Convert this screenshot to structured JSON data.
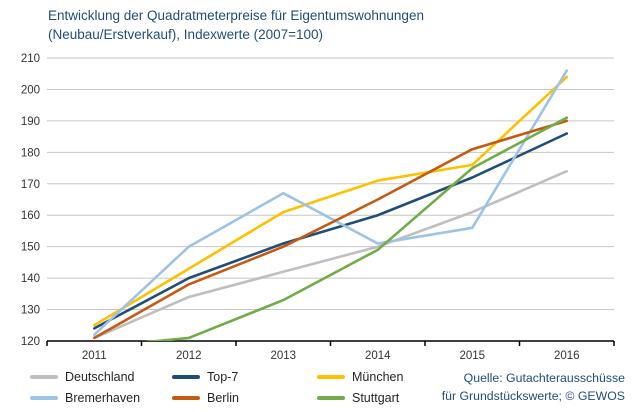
{
  "title": {
    "line1": "Entwicklung der Quadratmeterpreise für Eigentumswohnungen",
    "line2": "(Neubau/Erstverkauf), Indexwerte (2007=100)"
  },
  "source": {
    "line1": "Quelle: Gutachterausschüsse",
    "line2": "für Grundstückswerte; © GEWOS"
  },
  "colors": {
    "title_text": "#1F4E79",
    "axis_text": "#333333",
    "gridline": "#C6C6C6",
    "axis_line": "#000000",
    "background": "#FFFFFF"
  },
  "chart_data": {
    "type": "line",
    "title": "Entwicklung der Quadratmeterpreise für Eigentumswohnungen (Neubau/Erstverkauf), Indexwerte (2007=100)",
    "x_categories": [
      "2011",
      "2012",
      "2013",
      "2014",
      "2015",
      "2016"
    ],
    "series": [
      {
        "name": "Deutschland",
        "color": "#BFBFBF",
        "values": [
          121,
          134,
          142,
          150,
          161,
          174
        ]
      },
      {
        "name": "Top-7",
        "color": "#1F4E79",
        "values": [
          124,
          140,
          151,
          160,
          172,
          186
        ]
      },
      {
        "name": "München",
        "color": "#FFC000",
        "values": [
          125,
          143,
          161,
          171,
          176,
          204
        ]
      },
      {
        "name": "Bremerhaven",
        "color": "#9DC3E6",
        "values": [
          122,
          150,
          167,
          151,
          156,
          206
        ]
      },
      {
        "name": "Berlin",
        "color": "#C55A11",
        "values": [
          121,
          138,
          150,
          165,
          181,
          190
        ]
      },
      {
        "name": "Stuttgart",
        "color": "#70AD47",
        "values": [
          118,
          121,
          133,
          149,
          175,
          191
        ]
      }
    ],
    "ylim": [
      120,
      210
    ],
    "ytick_step": 10,
    "grid": true,
    "legend_position": "bottom",
    "note": "Stuttgart 2011 value lies below the y-axis minimum and is clipped at the axis"
  }
}
